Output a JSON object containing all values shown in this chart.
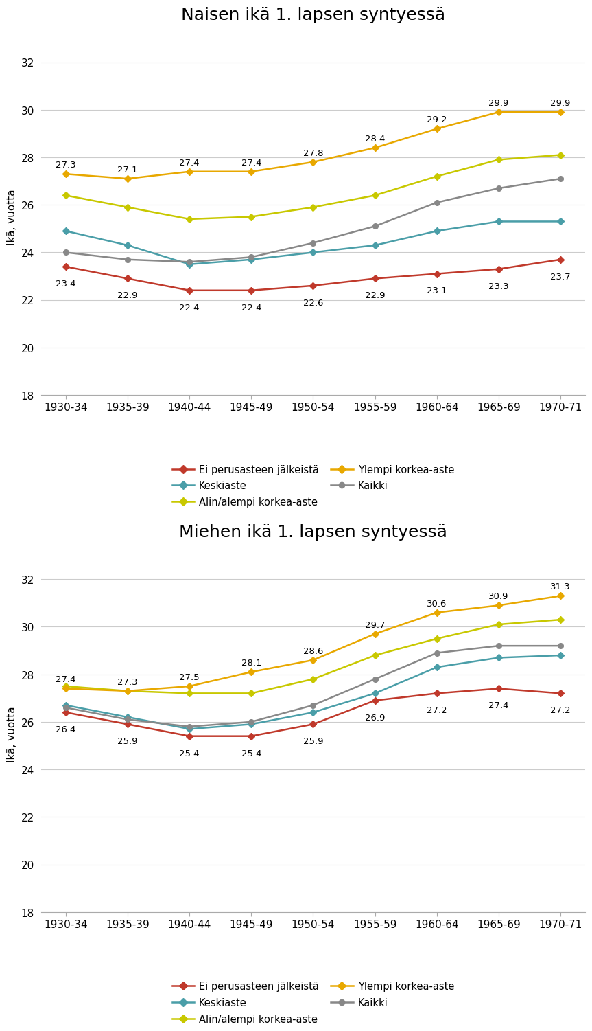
{
  "x_labels": [
    "1930-34",
    "1935-39",
    "1940-44",
    "1945-49",
    "1950-54",
    "1955-59",
    "1960-64",
    "1965-69",
    "1970-71"
  ],
  "top_chart": {
    "title": "Naisen ikä 1. lapsen syntyessä",
    "series": {
      "ei_perusasteen": [
        23.4,
        22.9,
        22.4,
        22.4,
        22.6,
        22.9,
        23.1,
        23.3,
        23.7
      ],
      "keskiaste": [
        24.9,
        24.3,
        23.5,
        23.7,
        24.0,
        24.3,
        24.9,
        25.3,
        25.3
      ],
      "alin_alempi": [
        26.4,
        25.9,
        25.4,
        25.5,
        25.9,
        26.4,
        27.2,
        27.9,
        28.1
      ],
      "ylempi": [
        27.3,
        27.1,
        27.4,
        27.4,
        27.8,
        28.4,
        29.2,
        29.9,
        29.9
      ],
      "kaikki": [
        24.0,
        23.7,
        23.6,
        23.8,
        24.4,
        25.1,
        26.1,
        26.7,
        27.1
      ]
    },
    "annotations": {
      "ei_perusasteen": [
        "23.4",
        "22.9",
        "22.4",
        "22.4",
        "22.6",
        "22.9",
        "23.1",
        "23.3",
        "23.7"
      ],
      "ylempi": [
        "27.3",
        "27.1",
        "27.4",
        "27.4",
        "27.8",
        "28.4",
        "29.2",
        "29.9",
        "29.9"
      ]
    }
  },
  "bottom_chart": {
    "title": "Miehen ikä 1. lapsen syntyessä",
    "series": {
      "ei_perusasteen": [
        26.4,
        25.9,
        25.4,
        25.4,
        25.9,
        26.9,
        27.2,
        27.4,
        27.2
      ],
      "keskiaste": [
        26.7,
        26.2,
        25.7,
        25.9,
        26.4,
        27.2,
        28.3,
        28.7,
        28.8
      ],
      "alin_alempi": [
        27.5,
        27.3,
        27.2,
        27.2,
        27.8,
        28.8,
        29.5,
        30.1,
        30.3
      ],
      "ylempi": [
        27.4,
        27.3,
        27.5,
        28.1,
        28.6,
        29.7,
        30.6,
        30.9,
        31.3
      ],
      "kaikki": [
        26.6,
        26.1,
        25.8,
        26.0,
        26.7,
        27.8,
        28.9,
        29.2,
        29.2
      ]
    },
    "annotations": {
      "ei_perusasteen": [
        "26.4",
        "25.9",
        "25.4",
        "25.4",
        "25.9",
        "26.9",
        "27.2",
        "27.4",
        "27.2"
      ],
      "ylempi": [
        "27.4",
        "27.3",
        "27.5",
        "28.1",
        "28.6",
        "29.7",
        "30.6",
        "30.9",
        "31.3"
      ]
    }
  },
  "colors": {
    "ei_perusasteen": "#c0392b",
    "keskiaste": "#4a9ea8",
    "alin_alempi": "#c8c800",
    "ylempi": "#e8a800",
    "kaikki": "#888888"
  },
  "legend_labels": {
    "ei_perusasteen": "Ei perusasteen jälkeistä",
    "keskiaste": "Keskiaste",
    "alin_alempi": "Alin/alempi korkea-aste",
    "ylempi": "Ylempi korkea-aste",
    "kaikki": "Kaikki"
  },
  "legend_order": [
    "ei_perusasteen",
    "keskiaste",
    "alin_alempi",
    "ylempi",
    "kaikki"
  ],
  "ylabel": "Ikä, vuotta",
  "ylim": [
    18,
    33
  ],
  "yticks": [
    18,
    20,
    22,
    24,
    26,
    28,
    30,
    32
  ],
  "annotation_fontsize": 9.5,
  "title_fontsize": 18,
  "label_fontsize": 11
}
